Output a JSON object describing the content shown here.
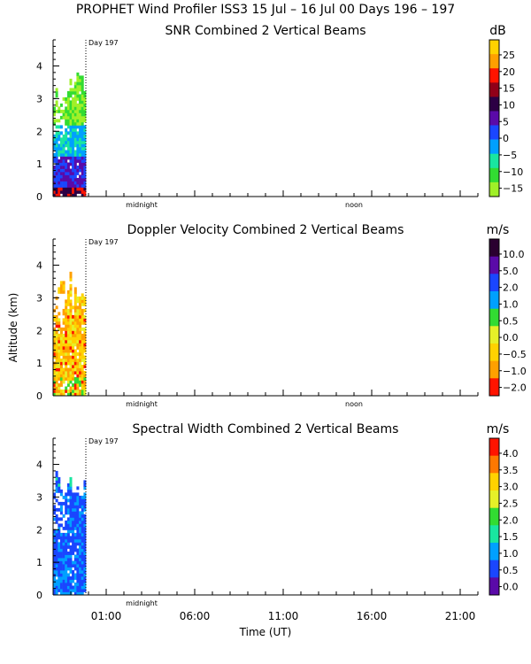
{
  "figure": {
    "title": "PROPHET Wind Profiler ISS3  15 Jul – 16 Jul 00 Days 196 – 197",
    "ylabel": "Altitude (km)",
    "xlabel": "Time (UT)",
    "day_marker": "Day 197",
    "inline_time_labels": [
      "midnight",
      "noon"
    ],
    "xtick_labels": [
      "01:00",
      "06:00",
      "11:00",
      "16:00",
      "21:00"
    ]
  },
  "chart_data": [
    {
      "type": "heatmap",
      "title": "SNR Combined 2 Vertical Beams",
      "colorbar_unit": "dB",
      "colorbar_labels": [
        "25",
        "20",
        "15",
        "10",
        "5",
        "0",
        "−5",
        "−10",
        "−15"
      ],
      "colorbar_colors": [
        "#ffd200",
        "#ffa000",
        "#ff1400",
        "#900018",
        "#2c0044",
        "#5a0aa8",
        "#1a46ff",
        "#00a0ff",
        "#19e6a0",
        "#32dc32",
        "#a0f028"
      ],
      "y_ticks": [
        0,
        1,
        2,
        3,
        4
      ],
      "ylim": [
        0,
        4.8
      ],
      "x_range_hours": [
        -2.0,
        22.0
      ],
      "data_x_hours": [
        -2.0,
        -0.15
      ],
      "max_altitude_km": 3.8
    },
    {
      "type": "heatmap",
      "title": "Doppler Velocity Combined 2 Vertical Beams",
      "colorbar_unit": "m/s",
      "colorbar_labels": [
        "10.0",
        "5.0",
        "2.0",
        "1.0",
        "0.5",
        "0.0",
        "−0.5",
        "−1.0",
        "−2.0"
      ],
      "colorbar_colors": [
        "#2a0030",
        "#5a0aa8",
        "#1a46ff",
        "#00a0ff",
        "#32dc32",
        "#e6f028",
        "#ffd200",
        "#ffa000",
        "#ff1400"
      ],
      "y_ticks": [
        0,
        1,
        2,
        3,
        4
      ],
      "ylim": [
        0,
        4.8
      ],
      "x_range_hours": [
        -2.0,
        22.0
      ],
      "data_x_hours": [
        -2.0,
        -0.15
      ],
      "max_altitude_km": 3.8
    },
    {
      "type": "heatmap",
      "title": "Spectral Width Combined 2 Vertical Beams",
      "colorbar_unit": "m/s",
      "colorbar_labels": [
        "4.0",
        "3.5",
        "3.0",
        "2.5",
        "2.0",
        "1.5",
        "1.0",
        "0.5",
        "0.0"
      ],
      "colorbar_colors": [
        "#ff1400",
        "#ff7800",
        "#ffd200",
        "#e6f028",
        "#32dc32",
        "#19e6a0",
        "#00a0ff",
        "#1a46ff",
        "#5a0aa8"
      ],
      "y_ticks": [
        0,
        1,
        2,
        3,
        4
      ],
      "ylim": [
        0,
        4.8
      ],
      "x_range_hours": [
        -2.0,
        22.0
      ],
      "data_x_hours": [
        -2.0,
        -0.15
      ],
      "max_altitude_km": 3.8
    }
  ]
}
